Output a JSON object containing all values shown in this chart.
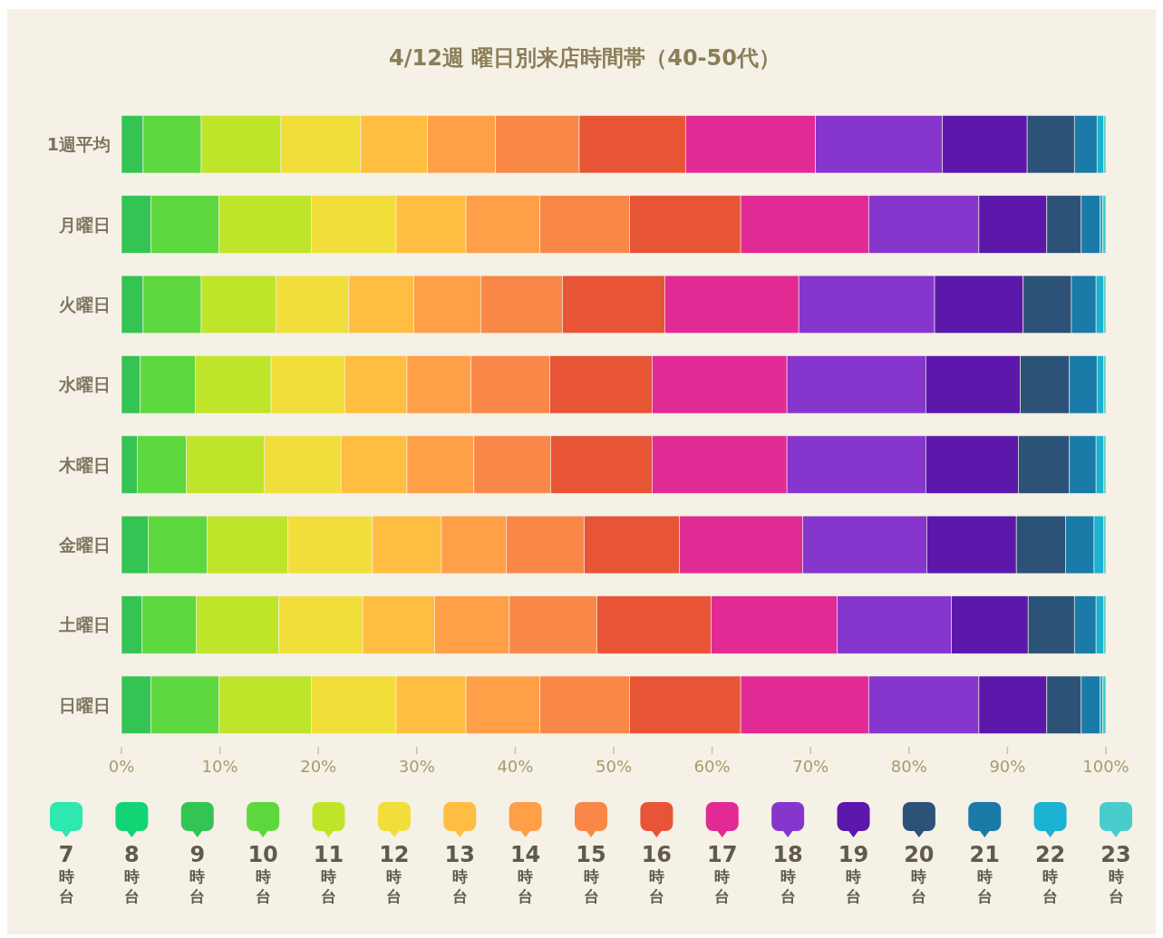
{
  "chart_data": {
    "type": "bar",
    "orientation": "horizontal",
    "stacked": true,
    "title": "4/12週  曜日別来店時間帯（40-50代）",
    "categories": [
      "1週平均",
      "月曜日",
      "火曜日",
      "水曜日",
      "木曜日",
      "金曜日",
      "土曜日",
      "日曜日"
    ],
    "xlim": [
      0,
      100
    ],
    "xticks": [
      {
        "value": 0,
        "label": "0%"
      },
      {
        "value": 10,
        "label": "10%"
      },
      {
        "value": 20,
        "label": "20%"
      },
      {
        "value": 30,
        "label": "30%"
      },
      {
        "value": 40,
        "label": "40%"
      },
      {
        "value": 50,
        "label": "50%"
      },
      {
        "value": 60,
        "label": "60%"
      },
      {
        "value": 70,
        "label": "70%"
      },
      {
        "value": 80,
        "label": "80%"
      },
      {
        "value": 90,
        "label": "90%"
      },
      {
        "value": 100,
        "label": "100%"
      }
    ],
    "grid": false,
    "legend": "bottom",
    "series": [
      {
        "name": "7時台",
        "color": "#2ee8b0",
        "values": [
          0,
          0,
          0,
          0,
          0,
          0,
          0,
          0
        ]
      },
      {
        "name": "8時台",
        "color": "#12d474",
        "values": [
          0,
          0,
          0,
          0,
          0,
          0,
          0,
          0
        ]
      },
      {
        "name": "9時台",
        "color": "#34c454",
        "values": [
          2.2,
          3.0,
          2.2,
          1.9,
          1.6,
          2.7,
          2.1,
          3.0
        ]
      },
      {
        "name": "10時台",
        "color": "#5dd83e",
        "values": [
          5.9,
          6.9,
          5.9,
          5.6,
          5.0,
          6.0,
          5.5,
          6.9
        ]
      },
      {
        "name": "11時台",
        "color": "#bfe52a",
        "values": [
          8.1,
          9.4,
          7.6,
          7.7,
          7.9,
          8.2,
          8.4,
          9.4
        ]
      },
      {
        "name": "12時台",
        "color": "#f2de3a",
        "values": [
          8.1,
          8.6,
          7.4,
          7.5,
          7.8,
          8.6,
          8.5,
          8.6
        ]
      },
      {
        "name": "13時台",
        "color": "#ffbe42",
        "values": [
          6.8,
          7.1,
          6.6,
          6.3,
          6.7,
          7.0,
          7.3,
          7.1
        ]
      },
      {
        "name": "14時台",
        "color": "#ff9f48",
        "values": [
          6.9,
          7.5,
          6.8,
          6.5,
          6.8,
          6.6,
          7.6,
          7.5
        ]
      },
      {
        "name": "15時台",
        "color": "#f98848",
        "values": [
          8.5,
          9.1,
          8.3,
          8.0,
          7.8,
          7.9,
          8.9,
          9.1
        ]
      },
      {
        "name": "16時台",
        "color": "#e85436",
        "values": [
          10.8,
          11.3,
          10.4,
          10.4,
          10.3,
          9.7,
          11.6,
          11.3
        ]
      },
      {
        "name": "17時台",
        "color": "#e22a94",
        "values": [
          13.2,
          13.0,
          13.6,
          13.7,
          13.7,
          12.5,
          12.8,
          13.0
        ]
      },
      {
        "name": "18時台",
        "color": "#8636cc",
        "values": [
          12.9,
          11.2,
          13.8,
          14.1,
          14.1,
          12.6,
          11.6,
          11.2
        ]
      },
      {
        "name": "19時台",
        "color": "#5c18aa",
        "values": [
          8.6,
          6.9,
          9.0,
          9.6,
          9.4,
          9.1,
          7.8,
          6.9
        ]
      },
      {
        "name": "20時台",
        "color": "#2c5278",
        "values": [
          4.8,
          3.5,
          4.9,
          5.0,
          5.2,
          5.0,
          4.7,
          3.5
        ]
      },
      {
        "name": "21時台",
        "color": "#1a7aa8",
        "values": [
          2.3,
          1.9,
          2.5,
          2.8,
          2.7,
          2.9,
          2.2,
          1.9
        ]
      },
      {
        "name": "22時台",
        "color": "#1cb2d2",
        "values": [
          0.7,
          0.3,
          0.8,
          0.7,
          0.8,
          1.0,
          0.8,
          0.3
        ]
      },
      {
        "name": "23時台",
        "color": "#48cccc",
        "values": [
          0.2,
          0.3,
          0.2,
          0.2,
          0.2,
          0.2,
          0.2,
          0.3
        ]
      }
    ]
  }
}
